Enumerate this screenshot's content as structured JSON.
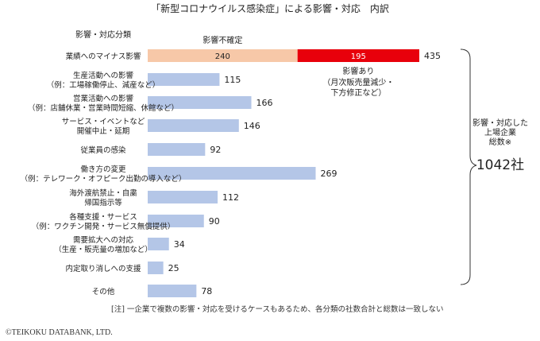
{
  "chart_data": {
    "type": "bar",
    "orientation": "horizontal",
    "title": "「新型コロナウイルス感染症」による影響・対応　内訳",
    "category_header": "影響・対応分類",
    "categories": [
      [
        "業績へのマイナス影響"
      ],
      [
        "生産活動への影響",
        "（例：工場稼働停止、減産など）"
      ],
      [
        "営業活動への影響",
        "（例：店舗休業・営業時間短縮、休館など）"
      ],
      [
        "サービス・イベントなど",
        "開催中止・延期"
      ],
      [
        "従業員の感染"
      ],
      [
        "働き方の変更",
        "（例：テレワーク・オフピーク出勤の導入など）"
      ],
      [
        "海外渡航禁止・自粛",
        "帰国指示等"
      ],
      [
        "各種支援・サービス",
        "（例：ワクチン開発・サービス無償提供）"
      ],
      [
        "需要拡大への対応",
        "（生産・販売量の増加など）"
      ],
      [
        "内定取り消しへの支援"
      ],
      [
        "その他"
      ]
    ],
    "values": [
      435,
      115,
      166,
      146,
      92,
      269,
      112,
      90,
      34,
      25,
      78
    ],
    "stacked_first": {
      "segments": [
        {
          "label": "影響不確定",
          "value": 240,
          "color": "#f7c8a8"
        },
        {
          "label": "影響あり",
          "sublabel": [
            "（月次販売量減少・",
            "下方修正など）"
          ],
          "value": 195,
          "color": "#e8000b"
        }
      ]
    },
    "bar_color": "#b4c6e7",
    "xlim": [
      0,
      435
    ],
    "total": {
      "label": [
        "影響・対応した",
        "上場企業",
        "総数※"
      ],
      "value": "1042社"
    },
    "note": "[注]  一企業で複数の影響・対応を受けるケースもあるため、各分類の社数合計と総数は一致しない",
    "copyright": "©TEIKOKU DATABANK, LTD."
  }
}
